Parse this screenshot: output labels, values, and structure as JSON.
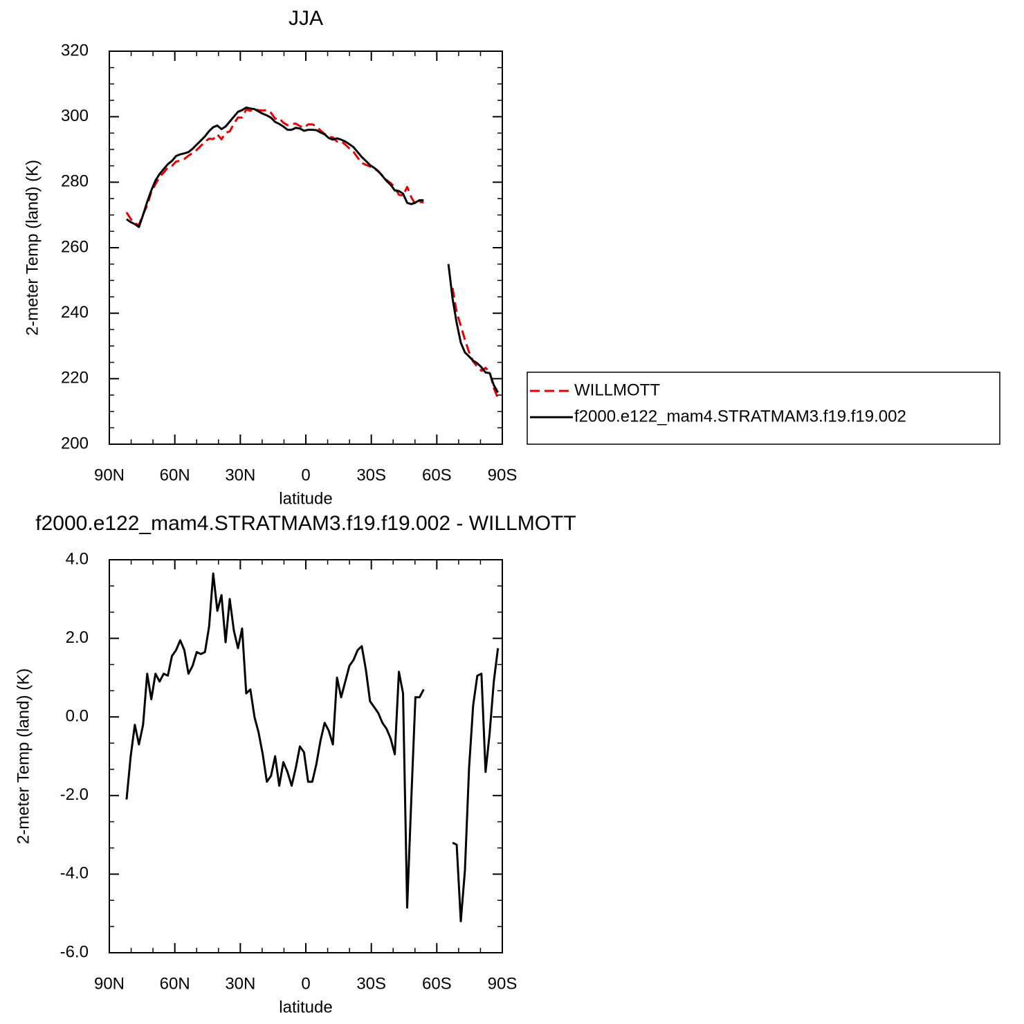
{
  "chart_data": [
    {
      "type": "line",
      "title": "JJA",
      "x_label": "latitude",
      "y_label": "2-meter Temp (land) (K)",
      "x": [
        82.1,
        80.21,
        78.32,
        76.43,
        74.54,
        72.65,
        70.76,
        68.87,
        66.98,
        65.09,
        63.2,
        61.31,
        59.42,
        57.53,
        55.64,
        53.75,
        51.86,
        49.97,
        48.08,
        46.19,
        44.3,
        42.41,
        40.52,
        38.63,
        36.74,
        34.85,
        32.96,
        31.07,
        29.18,
        27.29,
        25.4,
        23.51,
        21.62,
        19.73,
        17.84,
        15.95,
        14.06,
        12.17,
        10.28,
        8.39,
        6.5,
        4.61,
        2.72,
        0.83,
        -1.06,
        -2.95,
        -4.84,
        -6.73,
        -8.62,
        -10.51,
        -12.4,
        -14.29,
        -16.18,
        -18.07,
        -19.96,
        -21.85,
        -23.74,
        -25.63,
        -27.52,
        -29.41,
        -31.3,
        -33.19,
        -35.08,
        -36.97,
        -38.86,
        -40.75,
        -42.64,
        -44.53,
        -46.42,
        -48.31,
        -50.2,
        -52.09,
        -53.98,
        -55.87,
        -57.76,
        -59.65,
        -61.54,
        -63.43,
        -65.32,
        -67.21,
        -69.1,
        -70.99,
        -72.88,
        -74.77,
        -76.66,
        -78.55,
        -80.44,
        -82.33,
        -84.22,
        -86.11,
        -88.0
      ],
      "series": [
        {
          "name": "WILLMOTT",
          "color": "#e00000",
          "line_style": "dashed",
          "values": [
            270.8,
            268.8,
            267.4,
            267.0,
            270.2,
            272.9,
            277.05,
            279.4,
            281.6,
            282.9,
            284.45,
            284.95,
            286.3,
            286.55,
            287.1,
            288.1,
            288.9,
            289.85,
            291.1,
            292.35,
            293.3,
            293.15,
            294.6,
            293.1,
            295.1,
            295.5,
            297.8,
            299.75,
            299.75,
            302.2,
            301.8,
            302.3,
            302.0,
            301.85,
            302.05,
            301.2,
            299.4,
            299.55,
            298.15,
            297.4,
            297.75,
            297.9,
            297.15,
            296.6,
            297.65,
            297.65,
            297.1,
            295.8,
            294.75,
            293.85,
            293.7,
            292.4,
            292.5,
            291.5,
            290.3,
            289.25,
            287.5,
            285.9,
            285.3,
            284.8,
            284.15,
            283.3,
            282.05,
            280.7,
            279.75,
            278.45,
            276.15,
            275.9,
            278.55,
            275.4,
            273.3,
            274.0,
            273.8,
            null,
            null,
            null,
            null,
            null,
            null,
            247.7,
            240.25,
            236.2,
            231.9,
            228.1,
            225.2,
            223.65,
            222.4,
            223.3,
            222.1,
            217.1,
            214.05
          ]
        },
        {
          "name": "f2000.e122_mam4.STRATMAM3.f19.f19.002",
          "color": "#000000",
          "line_style": "solid",
          "values": [
            268.7,
            267.8,
            267.2,
            266.3,
            270.0,
            274.0,
            277.5,
            280.5,
            282.5,
            284.0,
            285.5,
            286.5,
            288.0,
            288.5,
            288.8,
            289.2,
            290.2,
            291.5,
            292.7,
            294.0,
            295.6,
            296.8,
            297.3,
            296.2,
            297.0,
            298.5,
            300.0,
            301.5,
            302.0,
            302.8,
            302.5,
            302.3,
            301.6,
            300.9,
            300.4,
            299.7,
            298.4,
            297.8,
            297.0,
            296.0,
            296.0,
            296.6,
            296.4,
            295.7,
            296.0,
            296.0,
            295.9,
            295.2,
            294.6,
            293.5,
            293.0,
            293.4,
            293.0,
            292.4,
            291.6,
            290.7,
            289.2,
            287.7,
            286.5,
            285.2,
            284.4,
            283.4,
            281.9,
            280.4,
            279.2,
            277.5,
            277.3,
            276.5,
            273.7,
            273.3,
            273.8,
            274.5,
            274.5,
            null,
            null,
            null,
            null,
            null,
            255.0,
            244.5,
            237.0,
            231.0,
            228.0,
            226.8,
            225.5,
            224.7,
            223.5,
            221.9,
            221.7,
            218.0,
            215.8
          ]
        }
      ],
      "xlim": [
        90,
        -90
      ],
      "xticks": [
        {
          "value": 90,
          "label": "90N"
        },
        {
          "value": 60,
          "label": "60N"
        },
        {
          "value": 30,
          "label": "30N"
        },
        0,
        {
          "value": -30,
          "label": "30S"
        },
        {
          "value": -60,
          "label": "60S"
        },
        {
          "value": -90,
          "label": "90S"
        }
      ],
      "ylim": [
        200,
        320
      ],
      "yticks": [
        200,
        220,
        240,
        260,
        280,
        300,
        320
      ],
      "legend": "right"
    },
    {
      "type": "line",
      "title": "f2000.e122_mam4.STRATMAM3.f19.f19.002 - WILLMOTT",
      "x_label": "latitude",
      "y_label": "2-meter Temp (land) (K)",
      "x": [
        82.1,
        80.21,
        78.32,
        76.43,
        74.54,
        72.65,
        70.76,
        68.87,
        66.98,
        65.09,
        63.2,
        61.31,
        59.42,
        57.53,
        55.64,
        53.75,
        51.86,
        49.97,
        48.08,
        46.19,
        44.3,
        42.41,
        40.52,
        38.63,
        36.74,
        34.85,
        32.96,
        31.07,
        29.18,
        27.29,
        25.4,
        23.51,
        21.62,
        19.73,
        17.84,
        15.95,
        14.06,
        12.17,
        10.28,
        8.39,
        6.5,
        4.61,
        2.72,
        0.83,
        -1.06,
        -2.95,
        -4.84,
        -6.73,
        -8.62,
        -10.51,
        -12.4,
        -14.29,
        -16.18,
        -18.07,
        -19.96,
        -21.85,
        -23.74,
        -25.63,
        -27.52,
        -29.41,
        -31.3,
        -33.19,
        -35.08,
        -36.97,
        -38.86,
        -40.75,
        -42.64,
        -44.53,
        -46.42,
        -48.31,
        -50.2,
        -52.09,
        -53.98,
        -55.87,
        -57.76,
        -59.65,
        -61.54,
        -63.43,
        -65.32,
        -67.21,
        -69.1,
        -70.99,
        -72.88,
        -74.77,
        -76.66,
        -78.55,
        -80.44,
        -82.33,
        -84.22,
        -86.11,
        -88.0
      ],
      "color": "#000000",
      "values": [
        -2.1,
        -1.0,
        -0.2,
        -0.7,
        -0.2,
        1.1,
        0.45,
        1.1,
        0.9,
        1.1,
        1.05,
        1.55,
        1.7,
        1.95,
        1.7,
        1.1,
        1.3,
        1.65,
        1.6,
        1.65,
        2.3,
        3.65,
        2.7,
        3.1,
        1.9,
        3.0,
        2.2,
        1.75,
        2.25,
        0.6,
        0.7,
        0.0,
        -0.4,
        -0.95,
        -1.65,
        -1.5,
        -1.0,
        -1.75,
        -1.15,
        -1.4,
        -1.75,
        -1.3,
        -0.75,
        -0.9,
        -1.65,
        -1.65,
        -1.2,
        -0.6,
        -0.15,
        -0.35,
        -0.7,
        1.0,
        0.5,
        0.9,
        1.3,
        1.45,
        1.7,
        1.8,
        1.2,
        0.4,
        0.25,
        0.1,
        -0.15,
        -0.3,
        -0.55,
        -0.95,
        1.15,
        0.6,
        -4.85,
        -2.1,
        0.5,
        0.5,
        0.7,
        null,
        null,
        null,
        null,
        null,
        null,
        -3.2,
        -3.25,
        -5.2,
        -3.9,
        -1.3,
        0.3,
        1.05,
        1.1,
        -1.4,
        -0.4,
        0.9,
        1.75
      ],
      "xlim": [
        90,
        -90
      ],
      "xticks": [
        {
          "value": 90,
          "label": "90N"
        },
        {
          "value": 60,
          "label": "60N"
        },
        {
          "value": 30,
          "label": "30N"
        },
        0,
        {
          "value": -30,
          "label": "30S"
        },
        {
          "value": -60,
          "label": "60S"
        },
        {
          "value": -90,
          "label": "90S"
        }
      ],
      "ylim": [
        -6,
        4
      ],
      "yticks": [
        {
          "value": -6,
          "label": "-6.0"
        },
        {
          "value": -4,
          "label": "-4.0"
        },
        {
          "value": -2,
          "label": "-2.0"
        },
        {
          "value": 0,
          "label": "0.0"
        },
        {
          "value": 2,
          "label": "2.0"
        },
        {
          "value": 4,
          "label": "4.0"
        }
      ]
    }
  ]
}
